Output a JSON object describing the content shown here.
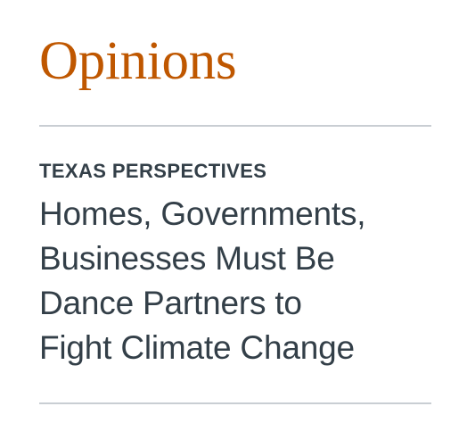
{
  "section": {
    "title": "Opinions"
  },
  "article": {
    "kicker": "TEXAS PERSPECTIVES",
    "headline_lines": [
      "Homes, Governments,",
      "Businesses Must Be",
      "Dance Partners to",
      "Fight Climate Change"
    ]
  },
  "colors": {
    "section_title": "#bf5700",
    "text": "#333f48",
    "rule": "#c9ced3",
    "background": "#ffffff"
  }
}
